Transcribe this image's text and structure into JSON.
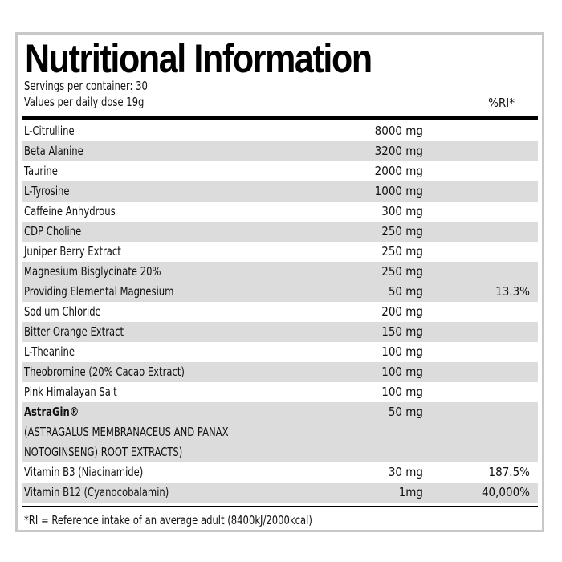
{
  "title": "Nutritional Information",
  "servings": "Servings per container: 30",
  "dose": "Values per daily dose 19g",
  "ri_header": "%RI*",
  "rows": [
    {
      "name": "L-Citrulline",
      "amount": "8000 mg",
      "ri": ""
    },
    {
      "name": "Beta Alanine",
      "amount": "3200 mg",
      "ri": ""
    },
    {
      "name": "Taurine",
      "amount": "2000 mg",
      "ri": ""
    },
    {
      "name": "L-Tyrosine",
      "amount": "1000 mg",
      "ri": ""
    },
    {
      "name": "Caffeine Anhydrous",
      "amount": "300 mg",
      "ri": ""
    },
    {
      "name": "CDP Choline",
      "amount": "250 mg",
      "ri": ""
    },
    {
      "name": "Juniper Berry Extract",
      "amount": "250 mg",
      "ri": ""
    },
    {
      "name": "Magnesium Bisglycinate 20%",
      "amount": "250 mg",
      "ri": ""
    },
    {
      "name": "Providing Elemental Magnesium",
      "amount": "50 mg",
      "ri": "13.3%"
    },
    {
      "name": "Sodium Chloride",
      "amount": "200 mg",
      "ri": ""
    },
    {
      "name": "Bitter Orange Extract",
      "amount": "150 mg",
      "ri": ""
    },
    {
      "name": "L-Theanine",
      "amount": "100 mg",
      "ri": ""
    },
    {
      "name": "Theobromine (20% Cacao Extract)",
      "amount": "100 mg",
      "ri": ""
    },
    {
      "name": "Pink Himalayan Salt",
      "amount": "100 mg",
      "ri": ""
    },
    {
      "name": "AstraGin®",
      "amount": "50 mg",
      "ri": "",
      "detail1": "(ASTRAGALUS MEMBRANACEUS AND PANAX",
      "detail2": "NOTOGINSENG) ROOT EXTRACTS)"
    },
    {
      "name": "Vitamin B3 (Niacinamide)",
      "amount": "30 mg",
      "ri": "187.5%"
    },
    {
      "name": "Vitamin B12 (Cyanocobalamin)",
      "amount": "1mg",
      "ri": "40,000%"
    }
  ],
  "footnote": "*RI = Reference intake of an average adult (8400kJ/2000kcal)"
}
